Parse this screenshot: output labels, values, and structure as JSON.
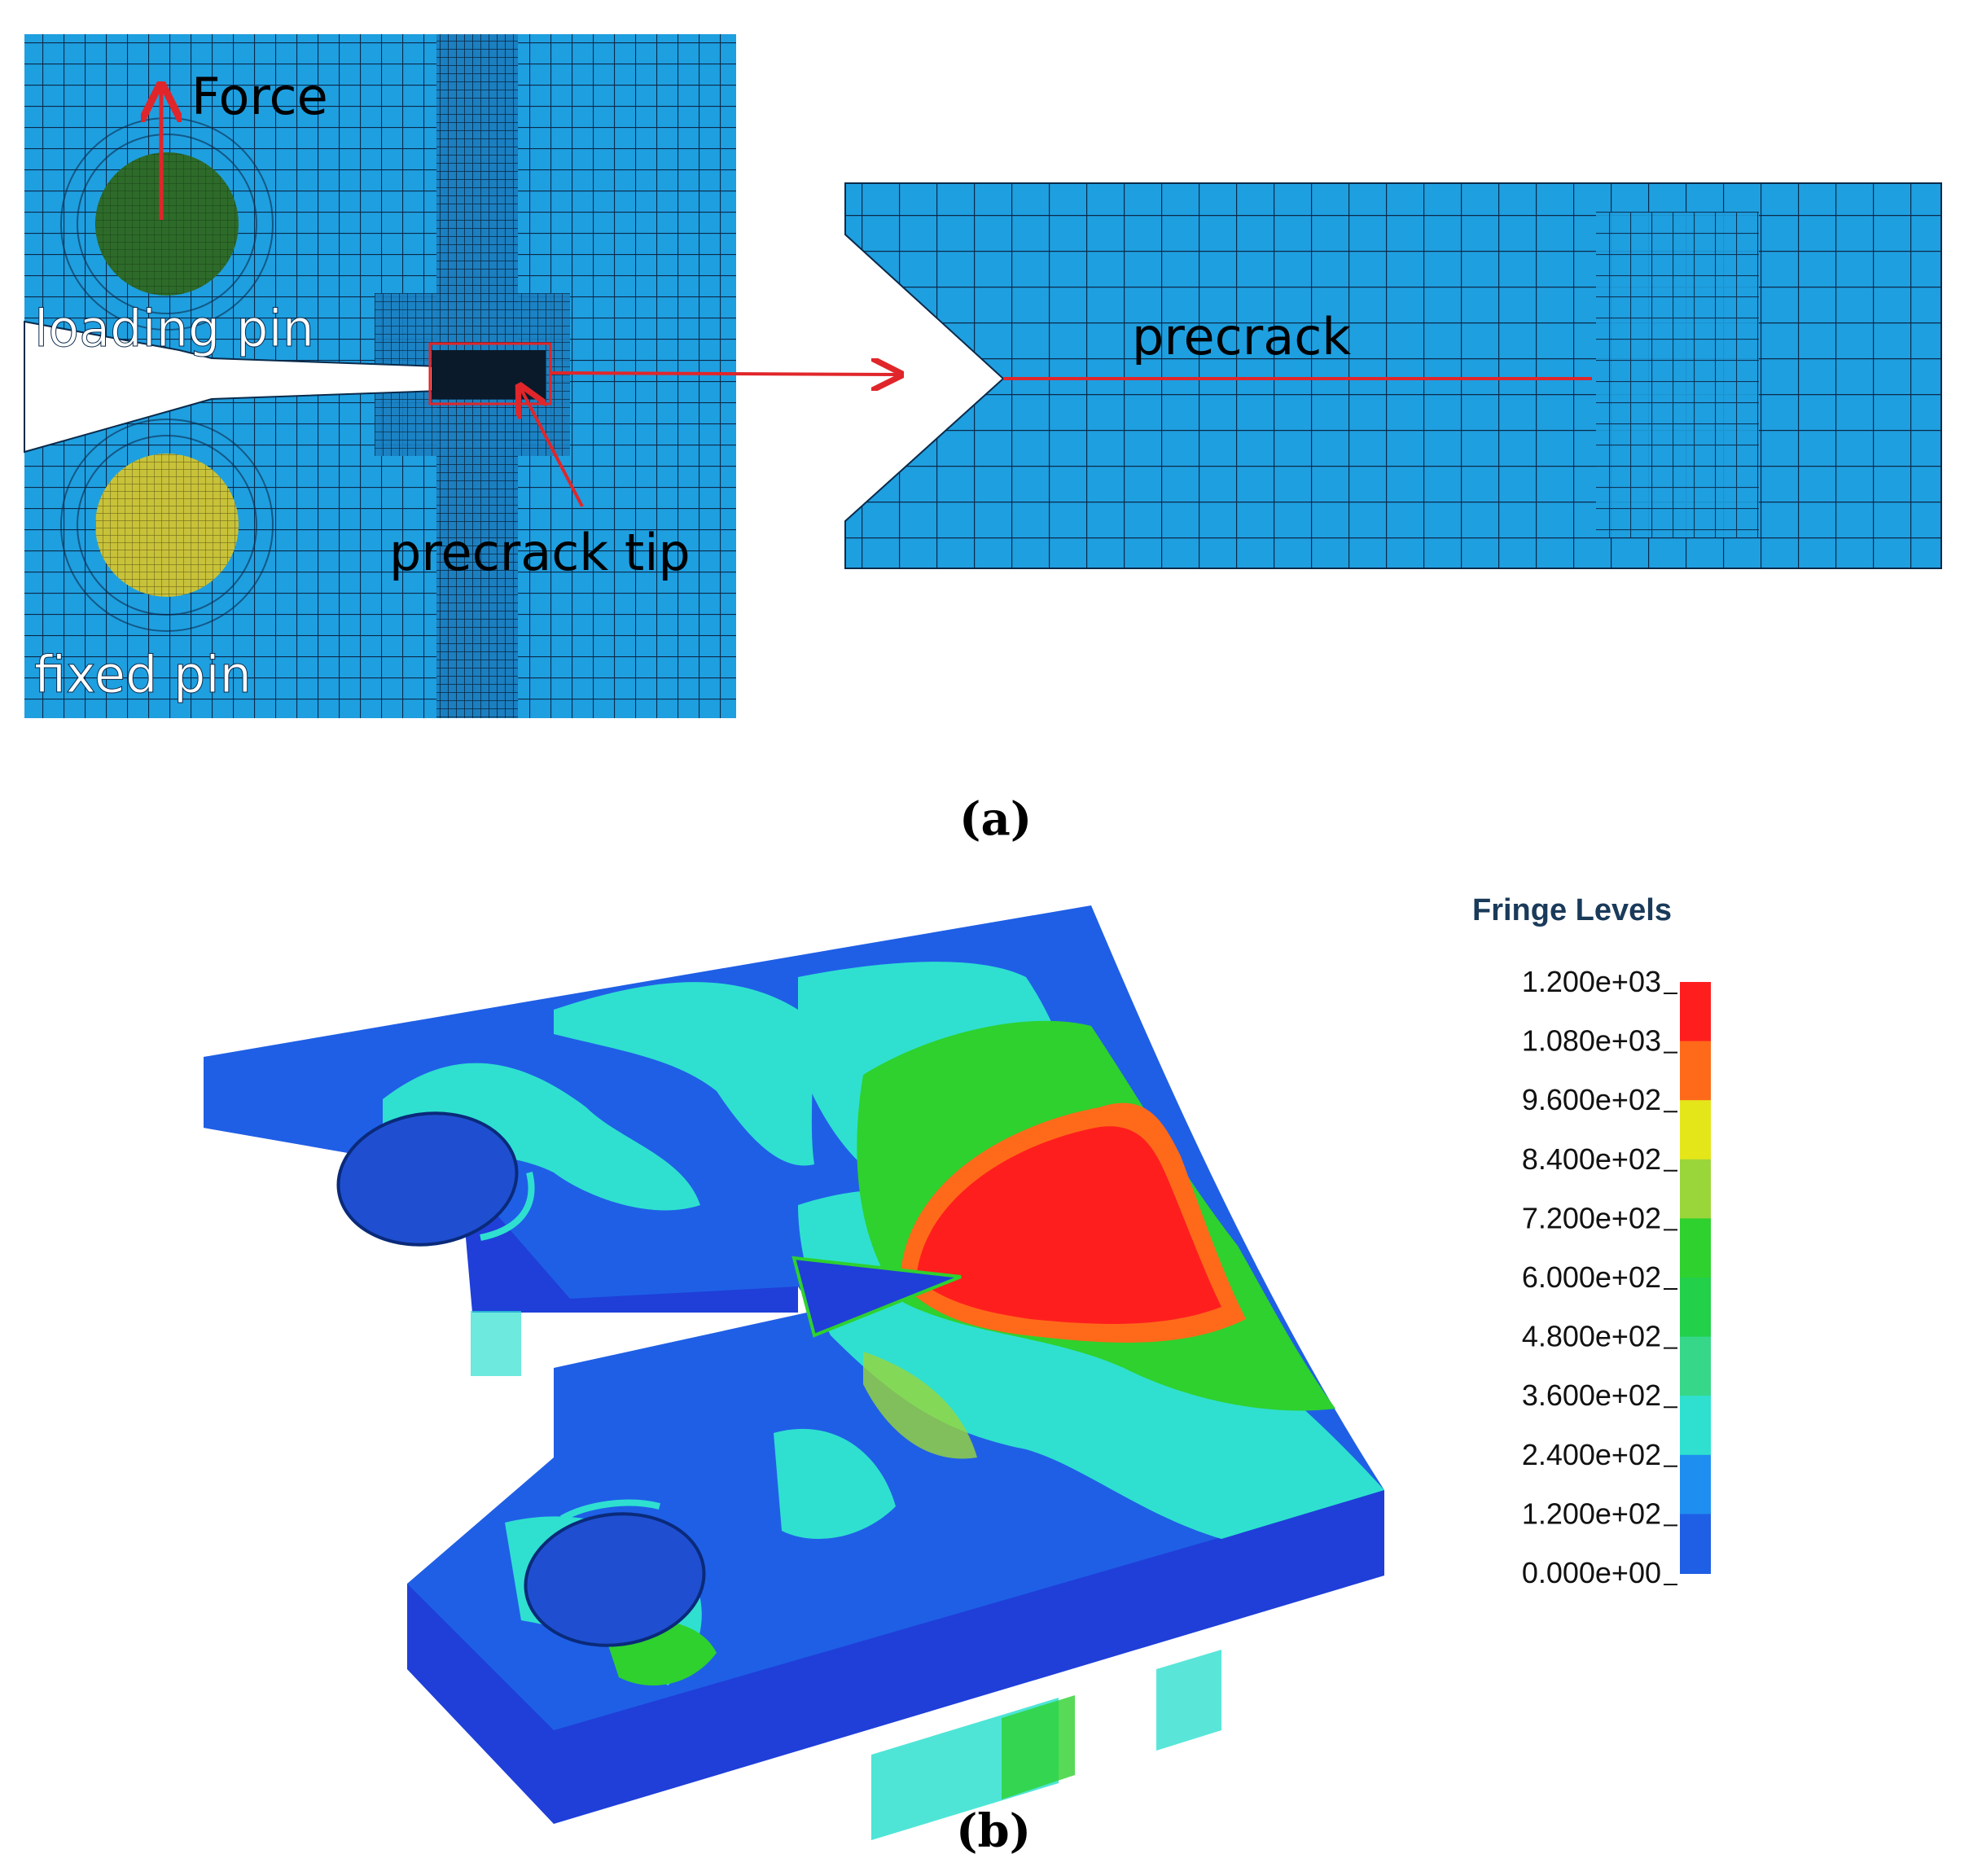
{
  "panel_a": {
    "labels": {
      "force": "Force",
      "loading_pin": "loading pin",
      "fixed_pin": "fixed pin",
      "precrack_tip": "precrack tip",
      "precrack": "precrack"
    },
    "caption": "(a)"
  },
  "panel_b": {
    "caption": "(b)",
    "legend": {
      "title": "Fringe Levels",
      "levels": [
        "1.200e+03",
        "1.080e+03",
        "9.600e+02",
        "8.400e+02",
        "7.200e+02",
        "6.000e+02",
        "4.800e+02",
        "3.600e+02",
        "2.400e+02",
        "1.200e+02",
        "0.000e+00"
      ],
      "colors": [
        "#ff1e1e",
        "#ff6a1a",
        "#e4e61a",
        "#9ad63a",
        "#2ed12e",
        "#22d04a",
        "#36d788",
        "#2fe0d0",
        "#1e8ff0",
        "#1f5fe6"
      ]
    }
  },
  "colors": {
    "mesh_fill": "#1e9fe0",
    "mesh_line": "#0b2a4a",
    "arrow": "#e0262a",
    "loading_pin": "#2e6b2a",
    "fixed_pin": "#c8c23a"
  }
}
